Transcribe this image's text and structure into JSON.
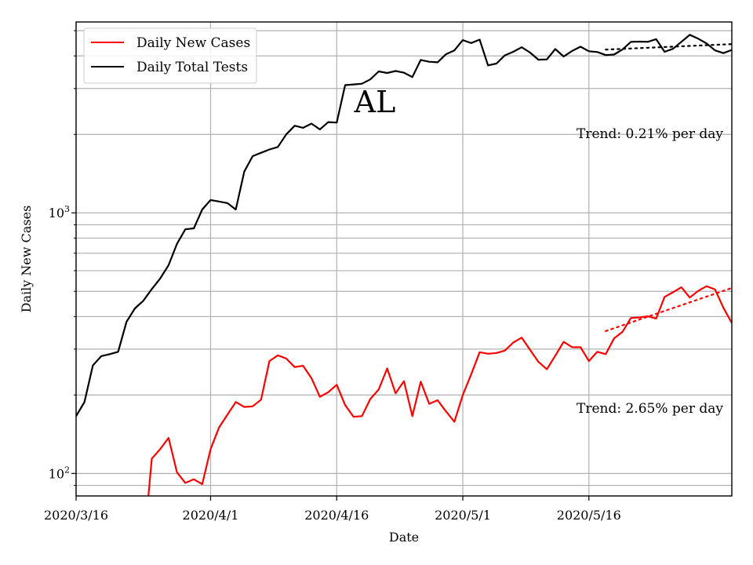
{
  "chart_data": {
    "type": "line",
    "title": "",
    "xlabel": "Date",
    "ylabel": "Daily New Cases",
    "y_scale": "log",
    "ylim": [
      82,
      5400
    ],
    "grid": true,
    "legend_position": "top-left",
    "x_tick_labels": [
      {
        "label": "2020/3/16",
        "day": 0
      },
      {
        "label": "2020/4/1",
        "day": 16
      },
      {
        "label": "2020/4/16",
        "day": 31
      },
      {
        "label": "2020/5/1",
        "day": 46
      },
      {
        "label": "2020/5/16",
        "day": 61
      }
    ],
    "x_range_days": [
      0,
      78
    ],
    "y_tick_labels": [
      {
        "label": "10",
        "exponent": "2",
        "value": 100
      },
      {
        "label": "10",
        "exponent": "3",
        "value": 1000
      }
    ],
    "y_minor_values": [
      90,
      200,
      300,
      400,
      500,
      600,
      700,
      800,
      900,
      2000,
      3000,
      4000,
      5000
    ],
    "annotations": {
      "state": "AL",
      "tests_trend": "Trend: 0.21% per day",
      "cases_trend": "Trend: 2.65% per day"
    },
    "series": [
      {
        "name": "Daily New Cases",
        "color": "#ff0000",
        "points": [
          [
            8.6,
            82
          ],
          [
            9,
            114
          ],
          [
            10,
            124
          ],
          [
            11,
            137
          ],
          [
            12,
            101
          ],
          [
            13,
            92
          ],
          [
            14,
            95
          ],
          [
            15,
            91
          ],
          [
            16,
            124
          ],
          [
            17,
            150
          ],
          [
            18,
            168
          ],
          [
            19,
            188
          ],
          [
            20,
            180
          ],
          [
            21,
            181
          ],
          [
            22,
            192
          ],
          [
            23,
            270
          ],
          [
            24,
            284
          ],
          [
            25,
            276
          ],
          [
            26,
            256
          ],
          [
            27,
            259
          ],
          [
            28,
            232
          ],
          [
            29,
            197
          ],
          [
            30,
            205
          ],
          [
            31,
            219
          ],
          [
            32,
            183
          ],
          [
            33,
            165
          ],
          [
            34,
            166
          ],
          [
            35,
            193
          ],
          [
            36,
            210
          ],
          [
            37,
            253
          ],
          [
            38,
            203
          ],
          [
            39,
            226
          ],
          [
            40,
            166
          ],
          [
            41,
            225
          ],
          [
            42,
            185
          ],
          [
            43,
            191
          ],
          [
            44,
            173
          ],
          [
            45,
            158
          ],
          [
            46,
            200
          ],
          [
            47,
            240
          ],
          [
            48,
            292
          ],
          [
            49,
            288
          ],
          [
            50,
            290
          ],
          [
            51,
            296
          ],
          [
            52,
            318
          ],
          [
            53,
            332
          ],
          [
            54,
            298
          ],
          [
            55,
            268
          ],
          [
            56,
            251
          ],
          [
            57,
            283
          ],
          [
            58,
            320
          ],
          [
            59,
            305
          ],
          [
            60,
            305
          ],
          [
            61,
            270
          ],
          [
            62,
            293
          ],
          [
            63,
            287
          ],
          [
            64,
            330
          ],
          [
            65,
            350
          ],
          [
            66,
            395
          ],
          [
            67,
            397
          ],
          [
            68,
            401
          ],
          [
            69,
            393
          ],
          [
            70,
            476
          ],
          [
            71,
            496
          ],
          [
            72,
            518
          ],
          [
            73,
            473
          ],
          [
            74,
            502
          ],
          [
            75,
            523
          ],
          [
            76,
            508
          ],
          [
            77,
            432
          ],
          [
            78,
            378
          ]
        ]
      },
      {
        "name": "Daily Total Tests",
        "color": "#000000",
        "points": [
          [
            0,
            166
          ],
          [
            1,
            188
          ],
          [
            2,
            260
          ],
          [
            3,
            282
          ],
          [
            4,
            287
          ],
          [
            5,
            293
          ],
          [
            6,
            382
          ],
          [
            7,
            430
          ],
          [
            8,
            460
          ],
          [
            9,
            510
          ],
          [
            10,
            560
          ],
          [
            11,
            630
          ],
          [
            12,
            760
          ],
          [
            13,
            865
          ],
          [
            14,
            872
          ],
          [
            15,
            1030
          ],
          [
            16,
            1120
          ],
          [
            17,
            1105
          ],
          [
            18,
            1090
          ],
          [
            19,
            1030
          ],
          [
            20,
            1440
          ],
          [
            21,
            1650
          ],
          [
            22,
            1700
          ],
          [
            23,
            1750
          ],
          [
            24,
            1790
          ],
          [
            25,
            2000
          ],
          [
            26,
            2160
          ],
          [
            27,
            2120
          ],
          [
            28,
            2200
          ],
          [
            29,
            2090
          ],
          [
            30,
            2230
          ],
          [
            31,
            2220
          ],
          [
            32,
            3090
          ],
          [
            33,
            3110
          ],
          [
            34,
            3130
          ],
          [
            35,
            3250
          ],
          [
            36,
            3490
          ],
          [
            37,
            3440
          ],
          [
            38,
            3500
          ],
          [
            39,
            3450
          ],
          [
            40,
            3320
          ],
          [
            41,
            3860
          ],
          [
            42,
            3800
          ],
          [
            43,
            3780
          ],
          [
            44,
            4060
          ],
          [
            45,
            4200
          ],
          [
            46,
            4600
          ],
          [
            47,
            4480
          ],
          [
            48,
            4620
          ],
          [
            49,
            3680
          ],
          [
            50,
            3740
          ],
          [
            51,
            4020
          ],
          [
            52,
            4150
          ],
          [
            53,
            4320
          ],
          [
            54,
            4120
          ],
          [
            55,
            3870
          ],
          [
            56,
            3880
          ],
          [
            57,
            4250
          ],
          [
            58,
            3980
          ],
          [
            59,
            4180
          ],
          [
            60,
            4340
          ],
          [
            61,
            4170
          ],
          [
            62,
            4140
          ],
          [
            63,
            4030
          ],
          [
            64,
            4050
          ],
          [
            65,
            4240
          ],
          [
            66,
            4530
          ],
          [
            67,
            4540
          ],
          [
            68,
            4530
          ],
          [
            69,
            4640
          ],
          [
            70,
            4150
          ],
          [
            71,
            4260
          ],
          [
            72,
            4530
          ],
          [
            73,
            4820
          ],
          [
            74,
            4660
          ],
          [
            75,
            4470
          ],
          [
            76,
            4200
          ],
          [
            77,
            4100
          ],
          [
            78,
            4220
          ]
        ]
      }
    ],
    "trend_lines": [
      {
        "series": "Daily Total Tests",
        "color": "#000000",
        "style": "dotted",
        "points": [
          [
            63,
            4230
          ],
          [
            78,
            4440
          ]
        ]
      },
      {
        "series": "Daily New Cases",
        "color": "#ff0000",
        "style": "dotted",
        "points": [
          [
            63,
            352
          ],
          [
            78,
            515
          ]
        ]
      }
    ]
  }
}
